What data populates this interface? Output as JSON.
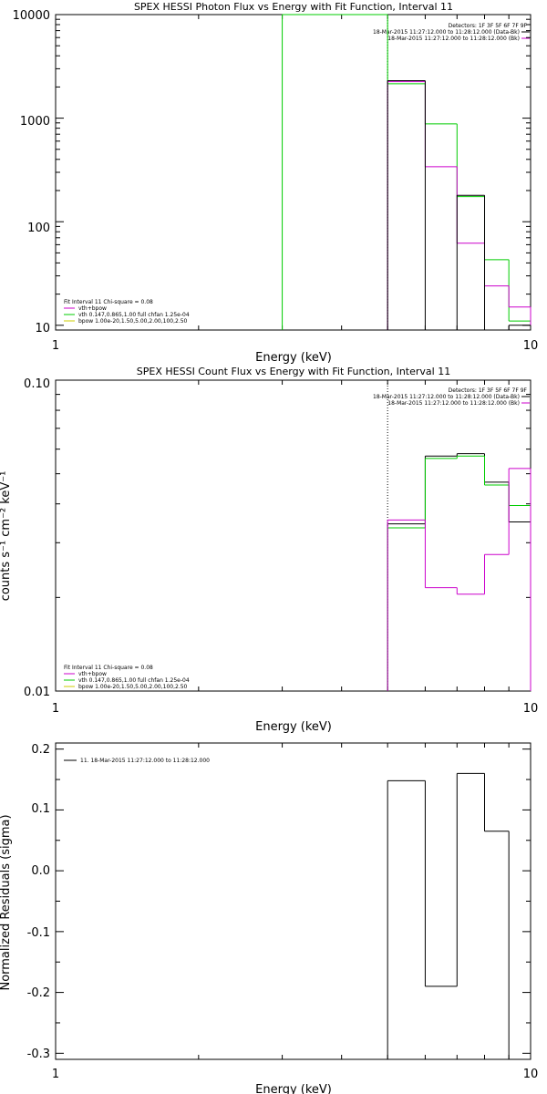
{
  "colors": {
    "axis": "#000000",
    "data": "#000000",
    "model": "#cc00cc",
    "vth": "#00cc00",
    "bpow": "#cccc00"
  },
  "chart_data": [
    {
      "type": "line",
      "title": "SPEX HESSI Photon Flux vs Energy with Fit Function, Interval 11",
      "xlabel": "Energy (keV)",
      "ylabel": "",
      "xscale": "log",
      "yscale": "log",
      "xlim": [
        1,
        10
      ],
      "ylim": [
        9,
        10000
      ],
      "xtick_labels": [
        "1",
        "10"
      ],
      "ytick_labels": [
        "10",
        "100",
        "1000",
        "10000"
      ],
      "info_lines": [
        "Detectors: 1F 3F 5F 6F 7F 9F",
        "18-Mar-2015 11:27:12.000 to 11:28:12.000 (Data-Bk)",
        "18-Mar-2015 11:27:12.000 to 11:28:12.000 (Bk)"
      ],
      "fit_legend": {
        "header": "Fit Interval 11   Chi-square = 0.08",
        "items": [
          "vth+bpow",
          "vth 0.147,0.865,1.00  full chfan 1.25e-04",
          "bpow 1.00e-20,1.50,5.00,2.00,100,2.50"
        ]
      },
      "edges": [
        3,
        4,
        5,
        6,
        7,
        8,
        9,
        10
      ],
      "series": [
        {
          "color_key": "vth",
          "values": [
            10000,
            10000,
            2150,
            880,
            175,
            43,
            11
          ]
        },
        {
          "color_key": "model",
          "values": [
            null,
            null,
            2250,
            340,
            62,
            24,
            15
          ]
        },
        {
          "color_key": "data",
          "values": [
            null,
            null,
            2300,
            null,
            180,
            null,
            10
          ]
        }
      ]
    },
    {
      "type": "line",
      "title": "SPEX HESSI Count Flux vs Energy with Fit Function, Interval 11",
      "xlabel": "Energy (keV)",
      "ylabel": "counts s⁻¹ cm⁻² keV⁻¹",
      "xscale": "log",
      "yscale": "log",
      "xlim": [
        1,
        10
      ],
      "ylim": [
        0.01,
        0.1
      ],
      "xtick_labels": [
        "1",
        "10"
      ],
      "ytick_labels": [
        "0.01",
        "0.10"
      ],
      "info_lines": [
        "Detectors: 1F 3F 5F 6F 7F 9F",
        "18-Mar-2015 11:27:12.000 to 11:28:12.000 (Data-Bk)",
        "18-Mar-2015 11:27:12.000 to 11:28:12.000 (Bk)"
      ],
      "fit_legend": {
        "header": "Fit Interval 11   Chi-square = 0.08",
        "items": [
          "vth+bpow",
          "vth 0.147,0.865,1.00  full chfan 1.25e-04",
          "bpow 1.00e-20,1.50,5.00,2.00,100,2.50"
        ]
      },
      "edges": [
        5,
        6,
        7,
        8,
        9,
        10
      ],
      "series": [
        {
          "color_key": "data",
          "values": [
            0.0345,
            0.057,
            0.058,
            0.047,
            0.035
          ]
        },
        {
          "color_key": "vth",
          "values": [
            0.0335,
            0.056,
            0.057,
            0.046,
            0.0395
          ]
        },
        {
          "color_key": "model",
          "values": [
            0.0355,
            0.0215,
            0.0205,
            0.0275,
            0.052
          ]
        }
      ]
    },
    {
      "type": "line",
      "title": "",
      "xlabel": "Energy (keV)",
      "ylabel": "Normalized Residuals (sigma)",
      "xscale": "log",
      "yscale": "linear",
      "xlim": [
        1,
        10
      ],
      "ylim": [
        -0.31,
        0.21
      ],
      "xtick_labels": [
        "1",
        "10"
      ],
      "ytick_labels": [
        "0.2",
        "0.1",
        "0.0",
        "-0.1",
        "-0.2",
        "-0.3"
      ],
      "legend": "11. 18-Mar-2015 11:27:12.000 to 11:28:12.000",
      "edges": [
        5,
        6,
        7,
        8,
        9
      ],
      "series": [
        {
          "color_key": "data",
          "values": [
            0.148,
            -0.19,
            0.16,
            0.065
          ]
        }
      ]
    }
  ]
}
